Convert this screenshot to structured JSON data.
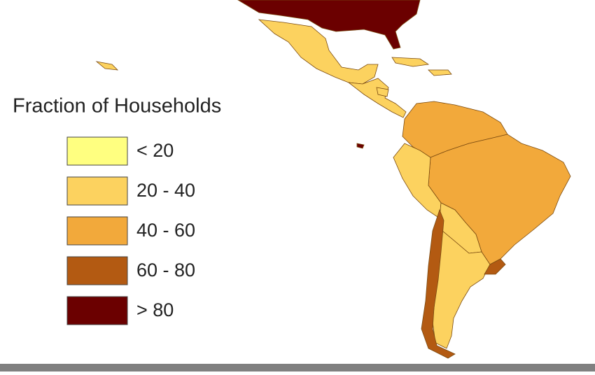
{
  "legend": {
    "title": "Fraction of Households",
    "items": [
      {
        "label": "< 20",
        "color": "#ffff80"
      },
      {
        "label": "20 - 40",
        "color": "#fcd25f"
      },
      {
        "label": "40 - 60",
        "color": "#f2a93b"
      },
      {
        "label": "60 - 80",
        "color": "#b35a12"
      },
      {
        "label": "> 80",
        "color": "#6b0000"
      }
    ]
  }
}
